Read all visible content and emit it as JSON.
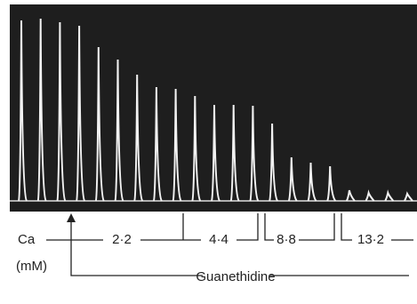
{
  "chart_data": {
    "type": "spike",
    "values": [
      203,
      205,
      201,
      197,
      173,
      159,
      142,
      128,
      126,
      118,
      108,
      108,
      107,
      87,
      49,
      43,
      39,
      12,
      9,
      9,
      8
    ],
    "ylim": [
      0,
      210
    ],
    "color": "#f2f2f2",
    "ion_label": "Ca",
    "unit_label": "(mM)",
    "concentrations": [
      "2·2",
      "4·4",
      "8·8",
      "13·2"
    ],
    "drug_label": "Guanethidine"
  }
}
